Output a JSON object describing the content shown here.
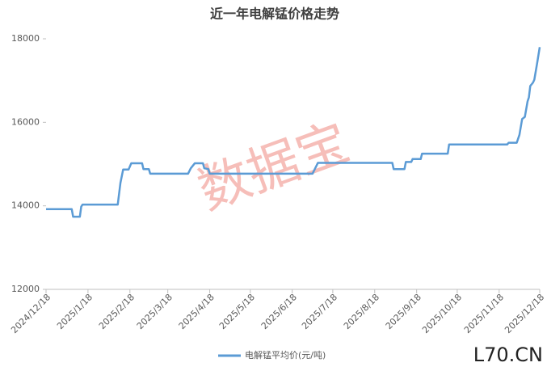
{
  "chart_data": {
    "type": "line",
    "title": "近一年电解锰价格走势",
    "x": [
      "2024/12/18",
      "2025/1/6",
      "2025/1/7",
      "2025/1/12",
      "2025/1/13",
      "2025/1/14",
      "2025/2/9",
      "2025/2/11",
      "2025/2/13",
      "2025/2/17",
      "2025/2/19",
      "2025/2/27",
      "2025/2/28",
      "2025/3/4",
      "2025/3/5",
      "2025/4/2",
      "2025/4/4",
      "2025/4/7",
      "2025/4/13",
      "2025/4/14",
      "2025/4/17",
      "2025/4/18",
      "2025/7/3",
      "2025/7/5",
      "2025/7/7",
      "2025/8/31",
      "2025/9/1",
      "2025/9/9",
      "2025/9/10",
      "2025/9/14",
      "2025/9/15",
      "2025/9/21",
      "2025/9/22",
      "2025/10/11",
      "2025/10/12",
      "2025/11/24",
      "2025/11/25",
      "2025/12/1",
      "2025/12/3",
      "2025/12/5",
      "2025/12/7",
      "2025/12/9",
      "2025/12/10",
      "2025/12/11",
      "2025/12/13",
      "2025/12/14",
      "2025/12/16",
      "2025/12/18"
    ],
    "series": [
      {
        "name": "电解锰平均价(元/吨)",
        "color": "#5b9bd5",
        "values": [
          13920,
          13920,
          13740,
          13740,
          13980,
          14030,
          14030,
          14550,
          14870,
          14870,
          15020,
          15020,
          14880,
          14880,
          14770,
          14770,
          14900,
          15020,
          15020,
          14900,
          14880,
          14770,
          14770,
          14900,
          15030,
          15030,
          14880,
          14880,
          15050,
          15050,
          15120,
          15120,
          15250,
          15250,
          15470,
          15470,
          15510,
          15510,
          15700,
          16080,
          16130,
          16500,
          16600,
          16870,
          16950,
          17020,
          17400,
          17800
        ]
      }
    ],
    "xlim": [
      "2024/12/18",
      "2025/12/18"
    ],
    "xticks": [
      "2024/12/18",
      "2025/1/18",
      "2025/2/18",
      "2025/3/18",
      "2025/4/18",
      "2025/5/18",
      "2025/6/18",
      "2025/7/18",
      "2025/8/18",
      "2025/9/18",
      "2025/10/18",
      "2025/11/18",
      "2025/12/18"
    ],
    "ylim": [
      12000,
      18000
    ],
    "yticks": [
      12000,
      14000,
      16000,
      18000
    ],
    "legend": "bottom",
    "watermark": "数据宝",
    "brand": "L70.CN"
  }
}
